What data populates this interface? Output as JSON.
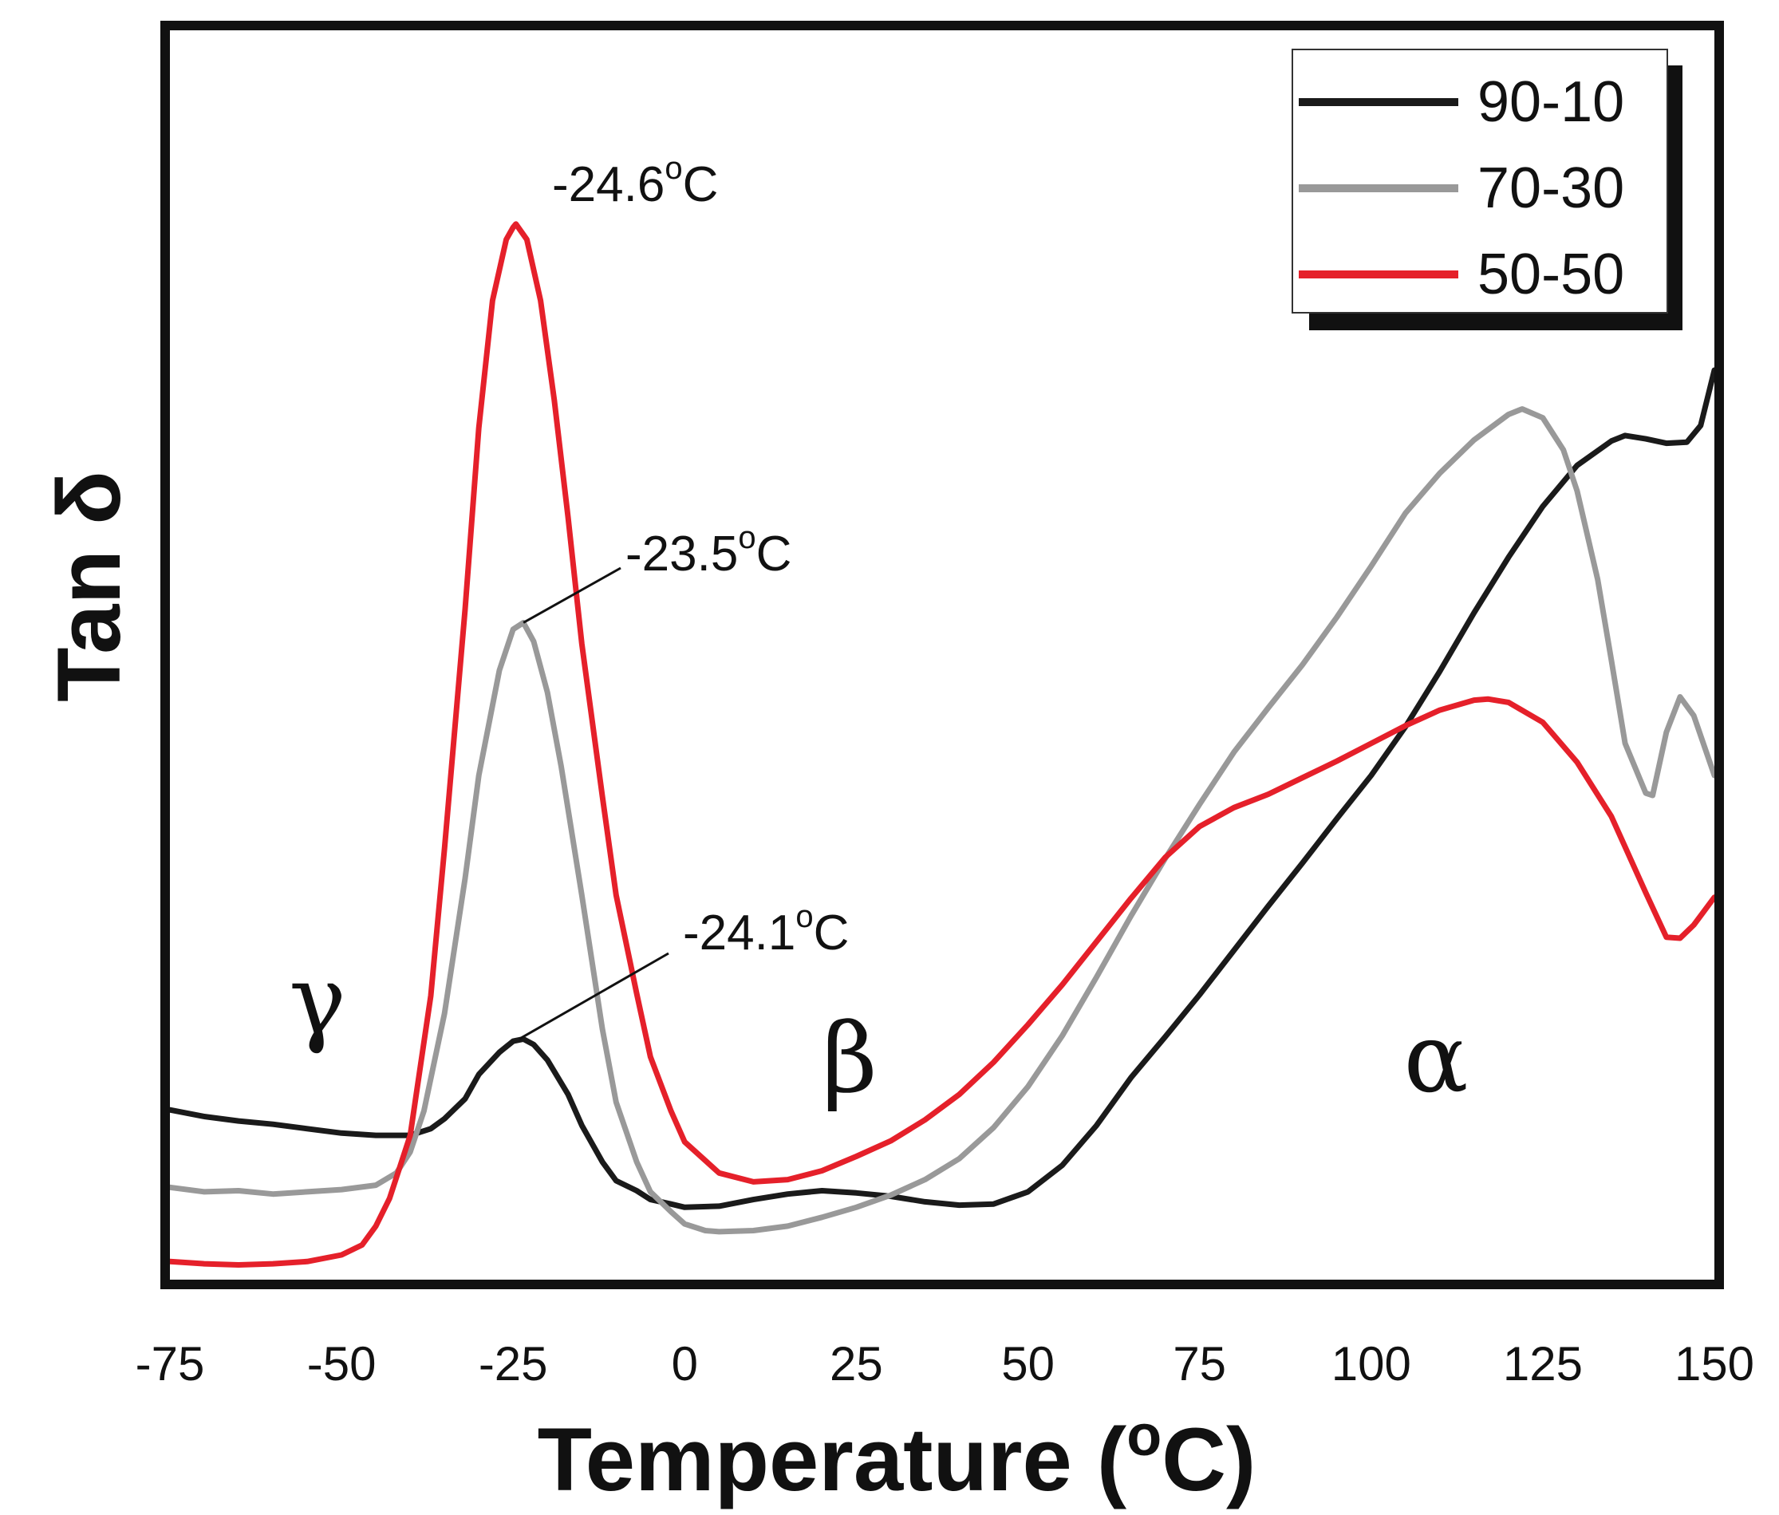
{
  "chart_data": {
    "type": "line",
    "xlabel": "Temperature (",
    "xlabel_sup": "o",
    "xlabel_end": "C)",
    "ylabel": "Tan δ",
    "xlim": [
      -75,
      150
    ],
    "ylim": [
      0,
      1
    ],
    "x_ticks": [
      -75,
      -50,
      -25,
      0,
      25,
      50,
      75,
      100,
      125,
      150
    ],
    "x_tick_labels": [
      "-75",
      "-50",
      "-25",
      "0",
      "25",
      "50",
      "75",
      "100",
      "125",
      "150"
    ],
    "y_ticks_shown": false,
    "legend": {
      "position": "top-right"
    },
    "series": [
      {
        "name": "90-10",
        "color": "#1a1a1a",
        "x": [
          -75,
          -70,
          -65,
          -60,
          -55,
          -50,
          -45,
          -40,
          -37,
          -35,
          -32,
          -30,
          -27,
          -25,
          -23.5,
          -22,
          -20,
          -17,
          -15,
          -12,
          -10,
          -7,
          -5,
          -2,
          0,
          5,
          10,
          15,
          20,
          25,
          30,
          35,
          40,
          45,
          50,
          55,
          60,
          65,
          70,
          75,
          80,
          85,
          90,
          95,
          100,
          105,
          110,
          115,
          120,
          125,
          130,
          135,
          137,
          140,
          143,
          146,
          148,
          150
        ],
        "y": [
          0.149,
          0.143,
          0.139,
          0.136,
          0.132,
          0.128,
          0.126,
          0.126,
          0.132,
          0.141,
          0.159,
          0.181,
          0.201,
          0.211,
          0.213,
          0.208,
          0.194,
          0.163,
          0.135,
          0.102,
          0.085,
          0.076,
          0.068,
          0.064,
          0.061,
          0.062,
          0.068,
          0.073,
          0.076,
          0.074,
          0.071,
          0.066,
          0.063,
          0.064,
          0.075,
          0.099,
          0.135,
          0.178,
          0.215,
          0.253,
          0.293,
          0.333,
          0.372,
          0.412,
          0.451,
          0.495,
          0.545,
          0.598,
          0.648,
          0.694,
          0.731,
          0.753,
          0.758,
          0.755,
          0.751,
          0.752,
          0.767,
          0.817
        ]
      },
      {
        "name": "70-30",
        "color": "#999999",
        "x": [
          -75,
          -70,
          -65,
          -60,
          -55,
          -50,
          -45,
          -42,
          -40,
          -38,
          -35,
          -32,
          -30,
          -27,
          -25,
          -23.5,
          -22,
          -20,
          -18,
          -15,
          -12,
          -10,
          -7,
          -5,
          -2,
          0,
          3,
          5,
          10,
          15,
          20,
          25,
          30,
          35,
          40,
          45,
          50,
          55,
          60,
          65,
          70,
          75,
          80,
          85,
          90,
          95,
          100,
          105,
          110,
          115,
          120,
          122,
          125,
          128,
          130,
          133,
          135,
          137,
          140,
          141,
          143,
          145,
          147,
          150
        ],
        "y": [
          0.079,
          0.075,
          0.076,
          0.073,
          0.075,
          0.077,
          0.081,
          0.092,
          0.111,
          0.148,
          0.236,
          0.358,
          0.451,
          0.546,
          0.583,
          0.589,
          0.572,
          0.526,
          0.459,
          0.343,
          0.222,
          0.156,
          0.102,
          0.075,
          0.057,
          0.046,
          0.04,
          0.039,
          0.04,
          0.044,
          0.052,
          0.061,
          0.072,
          0.086,
          0.105,
          0.133,
          0.17,
          0.216,
          0.269,
          0.324,
          0.376,
          0.425,
          0.472,
          0.512,
          0.551,
          0.594,
          0.64,
          0.688,
          0.724,
          0.754,
          0.777,
          0.782,
          0.774,
          0.745,
          0.708,
          0.628,
          0.555,
          0.48,
          0.435,
          0.433,
          0.49,
          0.522,
          0.505,
          0.451
        ]
      },
      {
        "name": "50-50",
        "color": "#e5202a",
        "x": [
          -75,
          -70,
          -65,
          -60,
          -55,
          -50,
          -47,
          -45,
          -43,
          -40,
          -37,
          -35,
          -32,
          -30,
          -28,
          -26,
          -25,
          -24.6,
          -23,
          -21,
          -19,
          -17,
          -15,
          -12,
          -10,
          -7,
          -5,
          -2,
          0,
          5,
          10,
          15,
          20,
          25,
          30,
          35,
          40,
          45,
          50,
          55,
          60,
          65,
          70,
          75,
          80,
          85,
          90,
          95,
          100,
          105,
          110,
          115,
          117,
          120,
          125,
          130,
          135,
          140,
          143,
          145,
          147,
          150
        ],
        "y": [
          0.012,
          0.01,
          0.009,
          0.01,
          0.012,
          0.018,
          0.027,
          0.044,
          0.069,
          0.126,
          0.252,
          0.385,
          0.601,
          0.765,
          0.88,
          0.935,
          0.946,
          0.949,
          0.935,
          0.88,
          0.79,
          0.684,
          0.57,
          0.432,
          0.343,
          0.254,
          0.197,
          0.148,
          0.12,
          0.092,
          0.084,
          0.086,
          0.094,
          0.107,
          0.121,
          0.14,
          0.163,
          0.192,
          0.226,
          0.262,
          0.301,
          0.34,
          0.377,
          0.405,
          0.422,
          0.434,
          0.449,
          0.464,
          0.48,
          0.496,
          0.51,
          0.519,
          0.52,
          0.517,
          0.499,
          0.463,
          0.414,
          0.345,
          0.305,
          0.304,
          0.316,
          0.341
        ]
      }
    ],
    "annotations": [
      {
        "text": "-24.6",
        "sup": "o",
        "unit": "C",
        "series": "50-50",
        "x": -24.6,
        "y": 0.949
      },
      {
        "text": "-23.5",
        "sup": "o",
        "unit": "C",
        "series": "70-30",
        "x": -23.5,
        "y": 0.589
      },
      {
        "text": "-24.1",
        "sup": "o",
        "unit": "C",
        "series": "90-10",
        "x": -24.1,
        "y": 0.213
      }
    ],
    "regions": [
      {
        "label": "γ",
        "x": -53
      },
      {
        "label": "β",
        "x": 23
      },
      {
        "label": "α",
        "x": 110
      }
    ]
  }
}
